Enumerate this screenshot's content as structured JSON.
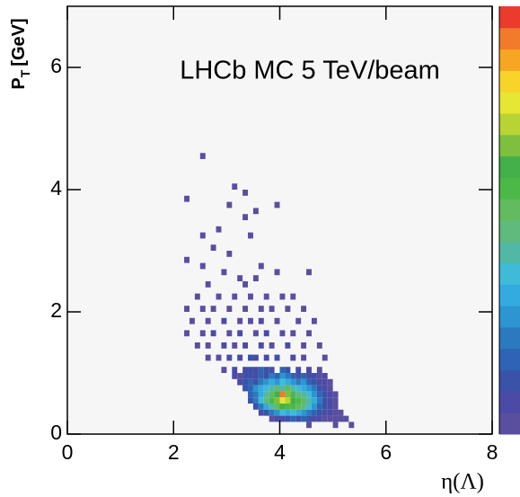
{
  "chart_data": {
    "type": "heatmap",
    "title": "LHCb MC 5 TeV/beam",
    "xlabel": "η(Λ)",
    "ylabel": "P",
    "ylabel_sub": "T",
    "ylabel_unit": "[GeV]",
    "xlim": [
      0,
      8
    ],
    "ylim": [
      0,
      7
    ],
    "xticks": [
      0,
      2,
      4,
      6,
      8
    ],
    "yticks": [
      0,
      2,
      4,
      6
    ],
    "bin_width": [
      0.1,
      0.1
    ],
    "zlim": [
      0,
      20
    ],
    "palette": [
      "#5a4f9e",
      "#4b4ba6",
      "#3a52a8",
      "#2f63b3",
      "#2b7ac0",
      "#2c95d2",
      "#33abe0",
      "#3fbbd8",
      "#52b8a6",
      "#5fba7d",
      "#62bb5d",
      "#4cb848",
      "#43b04a",
      "#7dbf3e",
      "#b8d334",
      "#e6e635",
      "#f7d42a",
      "#f6a623",
      "#f17a2b",
      "#ea3b2d"
    ],
    "cells": [
      [
        2.5,
        4.5,
        1
      ],
      [
        3.1,
        4.0,
        1
      ],
      [
        3.3,
        3.9,
        1
      ],
      [
        2.2,
        3.8,
        1
      ],
      [
        3.0,
        3.7,
        1
      ],
      [
        3.3,
        3.5,
        1
      ],
      [
        3.5,
        3.6,
        1
      ],
      [
        3.9,
        3.7,
        1
      ],
      [
        2.8,
        3.3,
        1
      ],
      [
        2.5,
        3.2,
        1
      ],
      [
        3.4,
        3.2,
        1
      ],
      [
        2.7,
        3.0,
        1
      ],
      [
        2.2,
        2.8,
        1
      ],
      [
        2.5,
        2.7,
        1
      ],
      [
        3.0,
        2.9,
        1
      ],
      [
        3.6,
        2.7,
        1
      ],
      [
        3.9,
        2.6,
        1
      ],
      [
        4.5,
        2.6,
        1
      ],
      [
        2.9,
        2.6,
        1
      ],
      [
        3.2,
        2.5,
        1
      ],
      [
        3.5,
        2.5,
        1
      ],
      [
        3.3,
        2.4,
        1
      ],
      [
        2.6,
        2.4,
        1
      ],
      [
        2.4,
        2.2,
        1
      ],
      [
        2.8,
        2.2,
        1
      ],
      [
        3.1,
        2.2,
        1
      ],
      [
        3.4,
        2.2,
        1
      ],
      [
        3.7,
        2.2,
        1
      ],
      [
        4.0,
        2.2,
        1
      ],
      [
        4.2,
        2.2,
        1
      ],
      [
        2.2,
        2.0,
        1
      ],
      [
        2.5,
        2.0,
        1
      ],
      [
        2.7,
        2.0,
        1
      ],
      [
        3.0,
        2.0,
        1
      ],
      [
        3.3,
        2.0,
        1
      ],
      [
        3.6,
        2.0,
        1
      ],
      [
        3.8,
        2.0,
        1
      ],
      [
        4.1,
        2.0,
        1
      ],
      [
        4.4,
        2.0,
        1
      ],
      [
        2.3,
        1.8,
        1
      ],
      [
        2.6,
        1.8,
        1
      ],
      [
        2.9,
        1.8,
        2
      ],
      [
        3.2,
        1.8,
        1
      ],
      [
        3.4,
        1.8,
        1
      ],
      [
        3.6,
        1.8,
        2
      ],
      [
        3.9,
        1.8,
        1
      ],
      [
        4.3,
        1.8,
        1
      ],
      [
        4.6,
        1.8,
        1
      ],
      [
        2.2,
        1.6,
        1
      ],
      [
        2.5,
        1.6,
        1
      ],
      [
        2.7,
        1.6,
        2
      ],
      [
        3.0,
        1.6,
        1
      ],
      [
        3.2,
        1.6,
        2
      ],
      [
        3.5,
        1.6,
        1
      ],
      [
        3.7,
        1.6,
        2
      ],
      [
        4.0,
        1.6,
        1
      ],
      [
        4.2,
        1.6,
        1
      ],
      [
        4.5,
        1.6,
        1
      ],
      [
        2.4,
        1.4,
        1
      ],
      [
        2.6,
        1.4,
        1
      ],
      [
        2.9,
        1.4,
        2
      ],
      [
        3.1,
        1.4,
        1
      ],
      [
        3.3,
        1.4,
        2
      ],
      [
        3.6,
        1.4,
        2
      ],
      [
        3.8,
        1.4,
        1
      ],
      [
        4.1,
        1.4,
        2
      ],
      [
        4.4,
        1.4,
        1
      ],
      [
        4.7,
        1.4,
        1
      ],
      [
        2.6,
        1.2,
        1
      ],
      [
        2.8,
        1.2,
        1
      ],
      [
        3.0,
        1.2,
        2
      ],
      [
        3.2,
        1.2,
        2
      ],
      [
        3.4,
        1.2,
        3
      ],
      [
        3.5,
        1.2,
        2
      ],
      [
        3.7,
        1.2,
        2
      ],
      [
        3.9,
        1.2,
        3
      ],
      [
        4.2,
        1.2,
        2
      ],
      [
        4.4,
        1.2,
        1
      ],
      [
        4.8,
        1.2,
        1
      ],
      [
        2.9,
        1.0,
        1
      ],
      [
        3.1,
        1.0,
        2
      ],
      [
        3.3,
        1.0,
        2
      ],
      [
        3.4,
        1.0,
        3
      ],
      [
        3.5,
        1.0,
        2
      ],
      [
        3.6,
        1.0,
        4
      ],
      [
        3.7,
        1.0,
        3
      ],
      [
        3.8,
        1.0,
        2
      ],
      [
        4.0,
        1.0,
        4
      ],
      [
        4.1,
        1.0,
        3
      ],
      [
        4.3,
        1.0,
        2
      ],
      [
        4.5,
        1.0,
        2
      ],
      [
        4.7,
        1.0,
        1
      ],
      [
        3.1,
        0.9,
        2
      ],
      [
        3.2,
        0.9,
        1
      ],
      [
        3.3,
        0.9,
        3
      ],
      [
        3.4,
        0.9,
        2
      ],
      [
        3.5,
        0.9,
        3
      ],
      [
        3.6,
        0.9,
        4
      ],
      [
        3.7,
        0.9,
        3
      ],
      [
        3.8,
        0.9,
        5
      ],
      [
        3.9,
        0.9,
        4
      ],
      [
        4.0,
        0.9,
        6
      ],
      [
        4.1,
        0.9,
        5
      ],
      [
        4.2,
        0.9,
        4
      ],
      [
        4.3,
        0.9,
        3
      ],
      [
        4.4,
        0.9,
        4
      ],
      [
        4.5,
        0.9,
        2
      ],
      [
        4.6,
        0.9,
        3
      ],
      [
        4.7,
        0.9,
        1
      ],
      [
        4.8,
        0.9,
        2
      ],
      [
        3.2,
        0.8,
        2
      ],
      [
        3.3,
        0.8,
        3
      ],
      [
        3.4,
        0.8,
        4
      ],
      [
        3.5,
        0.8,
        3
      ],
      [
        3.6,
        0.8,
        5
      ],
      [
        3.7,
        0.8,
        6
      ],
      [
        3.8,
        0.8,
        7
      ],
      [
        3.9,
        0.8,
        6
      ],
      [
        4.0,
        0.8,
        8
      ],
      [
        4.1,
        0.8,
        7
      ],
      [
        4.2,
        0.8,
        6
      ],
      [
        4.3,
        0.8,
        5
      ],
      [
        4.4,
        0.8,
        6
      ],
      [
        4.5,
        0.8,
        4
      ],
      [
        4.6,
        0.8,
        3
      ],
      [
        4.7,
        0.8,
        2
      ],
      [
        4.8,
        0.8,
        2
      ],
      [
        4.9,
        0.8,
        1
      ],
      [
        3.3,
        0.7,
        3
      ],
      [
        3.4,
        0.7,
        4
      ],
      [
        3.5,
        0.7,
        6
      ],
      [
        3.6,
        0.7,
        7
      ],
      [
        3.7,
        0.7,
        8
      ],
      [
        3.8,
        0.7,
        9
      ],
      [
        3.9,
        0.7,
        10
      ],
      [
        4.0,
        0.7,
        9
      ],
      [
        4.1,
        0.7,
        11
      ],
      [
        4.2,
        0.7,
        9
      ],
      [
        4.3,
        0.7,
        8
      ],
      [
        4.4,
        0.7,
        7
      ],
      [
        4.5,
        0.7,
        6
      ],
      [
        4.6,
        0.7,
        5
      ],
      [
        4.7,
        0.7,
        3
      ],
      [
        4.8,
        0.7,
        2
      ],
      [
        4.9,
        0.7,
        1
      ],
      [
        3.4,
        0.6,
        4
      ],
      [
        3.5,
        0.6,
        5
      ],
      [
        3.6,
        0.6,
        7
      ],
      [
        3.7,
        0.6,
        9
      ],
      [
        3.8,
        0.6,
        11
      ],
      [
        3.9,
        0.6,
        13
      ],
      [
        4.0,
        0.6,
        19
      ],
      [
        4.1,
        0.6,
        14
      ],
      [
        4.2,
        0.6,
        12
      ],
      [
        4.3,
        0.6,
        10
      ],
      [
        4.4,
        0.6,
        9
      ],
      [
        4.5,
        0.6,
        8
      ],
      [
        4.6,
        0.6,
        6
      ],
      [
        4.7,
        0.6,
        4
      ],
      [
        4.8,
        0.6,
        3
      ],
      [
        4.9,
        0.6,
        2
      ],
      [
        5.0,
        0.6,
        1
      ],
      [
        3.4,
        0.5,
        3
      ],
      [
        3.5,
        0.5,
        5
      ],
      [
        3.6,
        0.5,
        8
      ],
      [
        3.7,
        0.5,
        10
      ],
      [
        3.8,
        0.5,
        12
      ],
      [
        3.9,
        0.5,
        14
      ],
      [
        4.0,
        0.5,
        16
      ],
      [
        4.1,
        0.5,
        15
      ],
      [
        4.2,
        0.5,
        13
      ],
      [
        4.3,
        0.5,
        12
      ],
      [
        4.4,
        0.5,
        11
      ],
      [
        4.5,
        0.5,
        9
      ],
      [
        4.6,
        0.5,
        7
      ],
      [
        4.7,
        0.5,
        5
      ],
      [
        4.8,
        0.5,
        3
      ],
      [
        4.9,
        0.5,
        2
      ],
      [
        5.0,
        0.5,
        1
      ],
      [
        3.5,
        0.4,
        3
      ],
      [
        3.6,
        0.4,
        5
      ],
      [
        3.7,
        0.4,
        7
      ],
      [
        3.8,
        0.4,
        9
      ],
      [
        3.9,
        0.4,
        11
      ],
      [
        4.0,
        0.4,
        13
      ],
      [
        4.1,
        0.4,
        12
      ],
      [
        4.2,
        0.4,
        12
      ],
      [
        4.3,
        0.4,
        11
      ],
      [
        4.4,
        0.4,
        10
      ],
      [
        4.5,
        0.4,
        8
      ],
      [
        4.6,
        0.4,
        6
      ],
      [
        4.7,
        0.4,
        4
      ],
      [
        4.8,
        0.4,
        3
      ],
      [
        4.9,
        0.4,
        2
      ],
      [
        5.0,
        0.4,
        1
      ],
      [
        3.6,
        0.3,
        2
      ],
      [
        3.7,
        0.3,
        3
      ],
      [
        3.8,
        0.3,
        5
      ],
      [
        3.9,
        0.3,
        6
      ],
      [
        4.0,
        0.3,
        8
      ],
      [
        4.1,
        0.3,
        7
      ],
      [
        4.2,
        0.3,
        8
      ],
      [
        4.3,
        0.3,
        7
      ],
      [
        4.4,
        0.3,
        6
      ],
      [
        4.5,
        0.3,
        5
      ],
      [
        4.6,
        0.3,
        4
      ],
      [
        4.7,
        0.3,
        3
      ],
      [
        4.8,
        0.3,
        2
      ],
      [
        4.9,
        0.3,
        2
      ],
      [
        5.0,
        0.3,
        1
      ],
      [
        5.1,
        0.3,
        1
      ],
      [
        3.8,
        0.2,
        1
      ],
      [
        3.9,
        0.2,
        2
      ],
      [
        4.0,
        0.2,
        2
      ],
      [
        4.1,
        0.2,
        3
      ],
      [
        4.2,
        0.2,
        4
      ],
      [
        4.3,
        0.2,
        3
      ],
      [
        4.4,
        0.2,
        4
      ],
      [
        4.5,
        0.2,
        3
      ],
      [
        4.6,
        0.2,
        2
      ],
      [
        4.7,
        0.2,
        2
      ],
      [
        4.8,
        0.2,
        1
      ],
      [
        4.9,
        0.2,
        1
      ],
      [
        5.0,
        0.2,
        1
      ],
      [
        5.1,
        0.2,
        1
      ],
      [
        5.2,
        0.2,
        1
      ],
      [
        4.5,
        0.1,
        1
      ],
      [
        5.0,
        0.1,
        1
      ],
      [
        5.3,
        0.1,
        1
      ]
    ]
  }
}
